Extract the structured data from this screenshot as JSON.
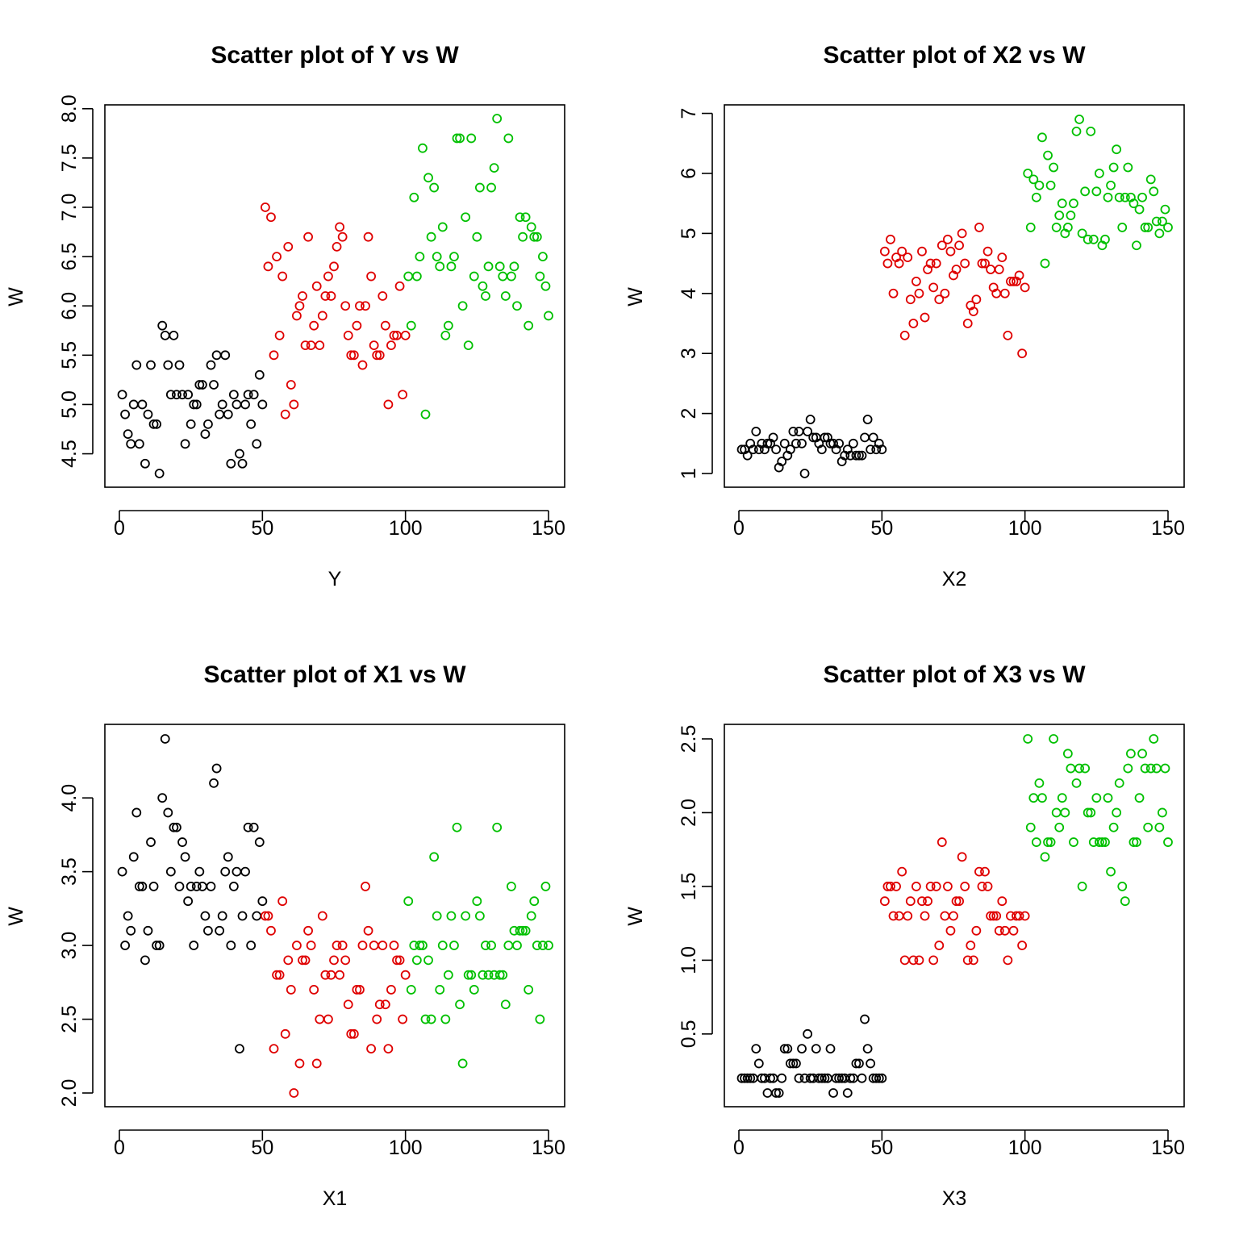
{
  "colors": {
    "group1": "#000000",
    "group2": "#DF0000",
    "group3": "#00C000"
  },
  "chart_data": [
    {
      "type": "scatter",
      "title": "Scatter plot of Y vs W",
      "xlabel": "Y",
      "ylabel": "W",
      "xlim": [
        0,
        150
      ],
      "ylim": [
        4.3,
        7.9
      ],
      "xticks": [
        "0",
        "50",
        "100",
        "150"
      ],
      "yticks": [
        "4.5",
        "5.0",
        "5.5",
        "6.0",
        "6.5",
        "7.0",
        "7.5",
        "8.0"
      ],
      "grid": false,
      "series": [
        {
          "color": "#000000",
          "values": [
            5.1,
            4.9,
            4.7,
            4.6,
            5.0,
            5.4,
            4.6,
            5.0,
            4.4,
            4.9,
            5.4,
            4.8,
            4.8,
            4.3,
            5.8,
            5.7,
            5.4,
            5.1,
            5.7,
            5.1,
            5.4,
            5.1,
            4.6,
            5.1,
            4.8,
            5.0,
            5.0,
            5.2,
            5.2,
            4.7,
            4.8,
            5.4,
            5.2,
            5.5,
            4.9,
            5.0,
            5.5,
            4.9,
            4.4,
            5.1,
            5.0,
            4.5,
            4.4,
            5.0,
            5.1,
            4.8,
            5.1,
            4.6,
            5.3,
            5.0
          ]
        },
        {
          "color": "#DF0000",
          "values": [
            7.0,
            6.4,
            6.9,
            5.5,
            6.5,
            5.7,
            6.3,
            4.9,
            6.6,
            5.2,
            5.0,
            5.9,
            6.0,
            6.1,
            5.6,
            6.7,
            5.6,
            5.8,
            6.2,
            5.6,
            5.9,
            6.1,
            6.3,
            6.1,
            6.4,
            6.6,
            6.8,
            6.7,
            6.0,
            5.7,
            5.5,
            5.5,
            5.8,
            6.0,
            5.4,
            6.0,
            6.7,
            6.3,
            5.6,
            5.5,
            5.5,
            6.1,
            5.8,
            5.0,
            5.6,
            5.7,
            5.7,
            6.2,
            5.1,
            5.7
          ]
        },
        {
          "color": "#00C000",
          "values": [
            6.3,
            5.8,
            7.1,
            6.3,
            6.5,
            7.6,
            4.9,
            7.3,
            6.7,
            7.2,
            6.5,
            6.4,
            6.8,
            5.7,
            5.8,
            6.4,
            6.5,
            7.7,
            7.7,
            6.0,
            6.9,
            5.6,
            7.7,
            6.3,
            6.7,
            7.2,
            6.2,
            6.1,
            6.4,
            7.2,
            7.4,
            7.9,
            6.4,
            6.3,
            6.1,
            7.7,
            6.3,
            6.4,
            6.0,
            6.9,
            6.7,
            6.9,
            5.8,
            6.8,
            6.7,
            6.7,
            6.3,
            6.5,
            6.2,
            5.9
          ]
        }
      ]
    },
    {
      "type": "scatter",
      "title": "Scatter plot of X2 vs W",
      "xlabel": "X2",
      "ylabel": "W",
      "xlim": [
        0,
        150
      ],
      "ylim": [
        1.0,
        6.9
      ],
      "xticks": [
        "0",
        "50",
        "100",
        "150"
      ],
      "yticks": [
        "1",
        "2",
        "3",
        "4",
        "5",
        "6",
        "7"
      ],
      "grid": false,
      "series": [
        {
          "color": "#000000",
          "values": [
            1.4,
            1.4,
            1.3,
            1.5,
            1.4,
            1.7,
            1.4,
            1.5,
            1.4,
            1.5,
            1.5,
            1.6,
            1.4,
            1.1,
            1.2,
            1.5,
            1.3,
            1.4,
            1.7,
            1.5,
            1.7,
            1.5,
            1.0,
            1.7,
            1.9,
            1.6,
            1.6,
            1.5,
            1.4,
            1.6,
            1.6,
            1.5,
            1.5,
            1.4,
            1.5,
            1.2,
            1.3,
            1.4,
            1.3,
            1.5,
            1.3,
            1.3,
            1.3,
            1.6,
            1.9,
            1.4,
            1.6,
            1.4,
            1.5,
            1.4
          ]
        },
        {
          "color": "#DF0000",
          "values": [
            4.7,
            4.5,
            4.9,
            4.0,
            4.6,
            4.5,
            4.7,
            3.3,
            4.6,
            3.9,
            3.5,
            4.2,
            4.0,
            4.7,
            3.6,
            4.4,
            4.5,
            4.1,
            4.5,
            3.9,
            4.8,
            4.0,
            4.9,
            4.7,
            4.3,
            4.4,
            4.8,
            5.0,
            4.5,
            3.5,
            3.8,
            3.7,
            3.9,
            5.1,
            4.5,
            4.5,
            4.7,
            4.4,
            4.1,
            4.0,
            4.4,
            4.6,
            4.0,
            3.3,
            4.2,
            4.2,
            4.2,
            4.3,
            3.0,
            4.1
          ]
        },
        {
          "color": "#00C000",
          "values": [
            6.0,
            5.1,
            5.9,
            5.6,
            5.8,
            6.6,
            4.5,
            6.3,
            5.8,
            6.1,
            5.1,
            5.3,
            5.5,
            5.0,
            5.1,
            5.3,
            5.5,
            6.7,
            6.9,
            5.0,
            5.7,
            4.9,
            6.7,
            4.9,
            5.7,
            6.0,
            4.8,
            4.9,
            5.6,
            5.8,
            6.1,
            6.4,
            5.6,
            5.1,
            5.6,
            6.1,
            5.6,
            5.5,
            4.8,
            5.4,
            5.6,
            5.1,
            5.1,
            5.9,
            5.7,
            5.2,
            5.0,
            5.2,
            5.4,
            5.1
          ]
        }
      ]
    },
    {
      "type": "scatter",
      "title": "Scatter plot of X1 vs W",
      "xlabel": "X1",
      "ylabel": "W",
      "xlim": [
        0,
        150
      ],
      "ylim": [
        2.0,
        4.4
      ],
      "xticks": [
        "0",
        "50",
        "100",
        "150"
      ],
      "yticks": [
        "2.0",
        "2.5",
        "3.0",
        "3.5",
        "4.0"
      ],
      "grid": false,
      "series": [
        {
          "color": "#000000",
          "values": [
            3.5,
            3.0,
            3.2,
            3.1,
            3.6,
            3.9,
            3.4,
            3.4,
            2.9,
            3.1,
            3.7,
            3.4,
            3.0,
            3.0,
            4.0,
            4.4,
            3.9,
            3.5,
            3.8,
            3.8,
            3.4,
            3.7,
            3.6,
            3.3,
            3.4,
            3.0,
            3.4,
            3.5,
            3.4,
            3.2,
            3.1,
            3.4,
            4.1,
            4.2,
            3.1,
            3.2,
            3.5,
            3.6,
            3.0,
            3.4,
            3.5,
            2.3,
            3.2,
            3.5,
            3.8,
            3.0,
            3.8,
            3.2,
            3.7,
            3.3
          ]
        },
        {
          "color": "#DF0000",
          "values": [
            3.2,
            3.2,
            3.1,
            2.3,
            2.8,
            2.8,
            3.3,
            2.4,
            2.9,
            2.7,
            2.0,
            3.0,
            2.2,
            2.9,
            2.9,
            3.1,
            3.0,
            2.7,
            2.2,
            2.5,
            3.2,
            2.8,
            2.5,
            2.8,
            2.9,
            3.0,
            2.8,
            3.0,
            2.9,
            2.6,
            2.4,
            2.4,
            2.7,
            2.7,
            3.0,
            3.4,
            3.1,
            2.3,
            3.0,
            2.5,
            2.6,
            3.0,
            2.6,
            2.3,
            2.7,
            3.0,
            2.9,
            2.9,
            2.5,
            2.8
          ]
        },
        {
          "color": "#00C000",
          "values": [
            3.3,
            2.7,
            3.0,
            2.9,
            3.0,
            3.0,
            2.5,
            2.9,
            2.5,
            3.6,
            3.2,
            2.7,
            3.0,
            2.5,
            2.8,
            3.2,
            3.0,
            3.8,
            2.6,
            2.2,
            3.2,
            2.8,
            2.8,
            2.7,
            3.3,
            3.2,
            2.8,
            3.0,
            2.8,
            3.0,
            2.8,
            3.8,
            2.8,
            2.8,
            2.6,
            3.0,
            3.4,
            3.1,
            3.0,
            3.1,
            3.1,
            3.1,
            2.7,
            3.2,
            3.3,
            3.0,
            2.5,
            3.0,
            3.4,
            3.0
          ]
        }
      ]
    },
    {
      "type": "scatter",
      "title": "Scatter plot of X3 vs W",
      "xlabel": "X3",
      "ylabel": "W",
      "xlim": [
        0,
        150
      ],
      "ylim": [
        0.1,
        2.5
      ],
      "xticks": [
        "0",
        "50",
        "100",
        "150"
      ],
      "yticks": [
        "0.5",
        "1.0",
        "1.5",
        "2.0",
        "2.5"
      ],
      "grid": false,
      "series": [
        {
          "color": "#000000",
          "values": [
            0.2,
            0.2,
            0.2,
            0.2,
            0.2,
            0.4,
            0.3,
            0.2,
            0.2,
            0.1,
            0.2,
            0.2,
            0.1,
            0.1,
            0.2,
            0.4,
            0.4,
            0.3,
            0.3,
            0.3,
            0.2,
            0.4,
            0.2,
            0.5,
            0.2,
            0.2,
            0.4,
            0.2,
            0.2,
            0.2,
            0.2,
            0.4,
            0.1,
            0.2,
            0.2,
            0.2,
            0.2,
            0.1,
            0.2,
            0.2,
            0.3,
            0.3,
            0.2,
            0.6,
            0.4,
            0.3,
            0.2,
            0.2,
            0.2,
            0.2
          ]
        },
        {
          "color": "#DF0000",
          "values": [
            1.4,
            1.5,
            1.5,
            1.3,
            1.5,
            1.3,
            1.6,
            1.0,
            1.3,
            1.4,
            1.0,
            1.5,
            1.0,
            1.4,
            1.3,
            1.4,
            1.5,
            1.0,
            1.5,
            1.1,
            1.8,
            1.3,
            1.5,
            1.2,
            1.3,
            1.4,
            1.4,
            1.7,
            1.5,
            1.0,
            1.1,
            1.0,
            1.2,
            1.6,
            1.5,
            1.6,
            1.5,
            1.3,
            1.3,
            1.3,
            1.2,
            1.4,
            1.2,
            1.0,
            1.3,
            1.2,
            1.3,
            1.3,
            1.1,
            1.3
          ]
        },
        {
          "color": "#00C000",
          "values": [
            2.5,
            1.9,
            2.1,
            1.8,
            2.2,
            2.1,
            1.7,
            1.8,
            1.8,
            2.5,
            2.0,
            1.9,
            2.1,
            2.0,
            2.4,
            2.3,
            1.8,
            2.2,
            2.3,
            1.5,
            2.3,
            2.0,
            2.0,
            1.8,
            2.1,
            1.8,
            1.8,
            1.8,
            2.1,
            1.6,
            1.9,
            2.0,
            2.2,
            1.5,
            1.4,
            2.3,
            2.4,
            1.8,
            1.8,
            2.1,
            2.4,
            2.3,
            1.9,
            2.3,
            2.5,
            2.3,
            1.9,
            2.0,
            2.3,
            1.8
          ]
        }
      ]
    }
  ]
}
